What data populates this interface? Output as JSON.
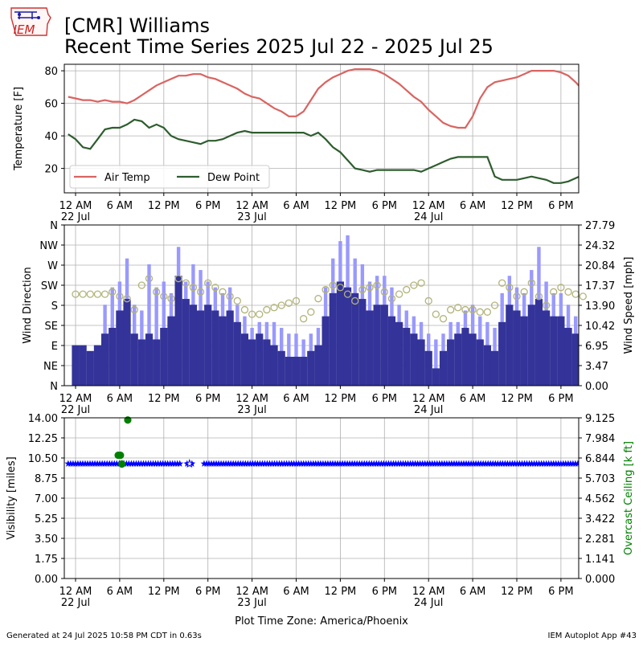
{
  "logo_text": "IEM",
  "title_line1": "[CMR] Williams",
  "title_line2": "Recent Time Series 2025 Jul 22 - 2025 Jul 25",
  "x_tick_labels": [
    "12 AM",
    "6 AM",
    "12 PM",
    "6 PM",
    "12 AM",
    "6 AM",
    "12 PM",
    "6 PM",
    "12 AM",
    "6 AM",
    "12 PM",
    "6 PM"
  ],
  "x_date_labels": [
    "22 Jul",
    "23 Jul",
    "24 Jul"
  ],
  "x_label": "Plot Time Zone: America/Phoenix",
  "footer_left": "Generated at 24 Jul 2025 10:58 PM CDT in 0.63s",
  "footer_right": "IEM Autoplot App #43",
  "colors": {
    "air_temp": "#d96461",
    "dew_point": "#2e5d2e",
    "wind_speed_dark": "#333399",
    "wind_gust_light": "#9999ff",
    "wind_dir": "#b3b37a",
    "visibility": "#0000ff",
    "ceiling": "#008000",
    "grid": "#b0b0b0"
  },
  "chart_data": [
    {
      "type": "line",
      "ylabel": "Temperature [F]",
      "ylim": [
        5,
        84
      ],
      "y_ticks": [
        "20",
        "40",
        "60",
        "80"
      ],
      "grid": true,
      "legend": "lower-left",
      "x_hours_from": "2025-07-22 00:00",
      "series": [
        {
          "name": "Air Temp",
          "points": [
            [
              -1,
              64
            ],
            [
              0,
              63
            ],
            [
              1,
              62
            ],
            [
              2,
              62
            ],
            [
              3,
              61
            ],
            [
              4,
              62
            ],
            [
              5,
              61
            ],
            [
              6,
              61
            ],
            [
              7,
              60
            ],
            [
              8,
              62
            ],
            [
              9,
              65
            ],
            [
              10,
              68
            ],
            [
              11,
              71
            ],
            [
              12,
              73
            ],
            [
              13,
              75
            ],
            [
              14,
              77
            ],
            [
              15,
              77
            ],
            [
              16,
              78
            ],
            [
              17,
              78
            ],
            [
              18,
              76
            ],
            [
              19,
              75
            ],
            [
              20,
              73
            ],
            [
              21,
              71
            ],
            [
              22,
              69
            ],
            [
              23,
              66
            ],
            [
              24,
              64
            ],
            [
              25,
              63
            ],
            [
              26,
              60
            ],
            [
              27,
              57
            ],
            [
              28,
              55
            ],
            [
              29,
              52
            ],
            [
              30,
              52
            ],
            [
              31,
              55
            ],
            [
              32,
              62
            ],
            [
              33,
              69
            ],
            [
              34,
              73
            ],
            [
              35,
              76
            ],
            [
              36,
              78
            ],
            [
              37,
              80
            ],
            [
              38,
              81
            ],
            [
              39,
              81
            ],
            [
              40,
              81
            ],
            [
              41,
              80
            ],
            [
              42,
              78
            ],
            [
              43,
              75
            ],
            [
              44,
              72
            ],
            [
              45,
              68
            ],
            [
              46,
              64
            ],
            [
              47,
              61
            ],
            [
              48,
              56
            ],
            [
              49,
              52
            ],
            [
              50,
              48
            ],
            [
              51,
              46
            ],
            [
              52,
              45
            ],
            [
              53,
              45
            ],
            [
              54,
              52
            ],
            [
              55,
              63
            ],
            [
              56,
              70
            ],
            [
              57,
              73
            ],
            [
              58,
              74
            ],
            [
              59,
              75
            ],
            [
              60,
              76
            ],
            [
              61,
              78
            ],
            [
              62,
              80
            ],
            [
              63,
              80
            ],
            [
              64,
              80
            ],
            [
              65,
              80
            ],
            [
              66,
              79
            ],
            [
              67,
              77
            ],
            [
              68,
              73
            ],
            [
              69,
              68
            ],
            [
              70,
              68
            ]
          ]
        },
        {
          "name": "Dew Point",
          "points": [
            [
              -1,
              41
            ],
            [
              0,
              38
            ],
            [
              1,
              33
            ],
            [
              2,
              32
            ],
            [
              3,
              38
            ],
            [
              4,
              44
            ],
            [
              5,
              45
            ],
            [
              6,
              45
            ],
            [
              7,
              47
            ],
            [
              8,
              50
            ],
            [
              9,
              49
            ],
            [
              10,
              45
            ],
            [
              11,
              47
            ],
            [
              12,
              45
            ],
            [
              13,
              40
            ],
            [
              14,
              38
            ],
            [
              15,
              37
            ],
            [
              16,
              36
            ],
            [
              17,
              35
            ],
            [
              18,
              37
            ],
            [
              19,
              37
            ],
            [
              20,
              38
            ],
            [
              21,
              40
            ],
            [
              22,
              42
            ],
            [
              23,
              43
            ],
            [
              24,
              42
            ],
            [
              25,
              42
            ],
            [
              26,
              42
            ],
            [
              27,
              42
            ],
            [
              28,
              42
            ],
            [
              29,
              42
            ],
            [
              30,
              42
            ],
            [
              31,
              42
            ],
            [
              32,
              40
            ],
            [
              33,
              42
            ],
            [
              34,
              38
            ],
            [
              35,
              33
            ],
            [
              36,
              30
            ],
            [
              37,
              25
            ],
            [
              38,
              20
            ],
            [
              39,
              19
            ],
            [
              40,
              18
            ],
            [
              41,
              19
            ],
            [
              42,
              19
            ],
            [
              43,
              19
            ],
            [
              44,
              19
            ],
            [
              45,
              19
            ],
            [
              46,
              19
            ],
            [
              47,
              18
            ],
            [
              48,
              20
            ],
            [
              49,
              22
            ],
            [
              50,
              24
            ],
            [
              51,
              26
            ],
            [
              52,
              27
            ],
            [
              53,
              27
            ],
            [
              54,
              27
            ],
            [
              55,
              27
            ],
            [
              56,
              27
            ],
            [
              57,
              15
            ],
            [
              58,
              13
            ],
            [
              59,
              13
            ],
            [
              60,
              13
            ],
            [
              61,
              14
            ],
            [
              62,
              15
            ],
            [
              63,
              14
            ],
            [
              64,
              13
            ],
            [
              65,
              11
            ],
            [
              66,
              11
            ],
            [
              67,
              12
            ],
            [
              68,
              14
            ],
            [
              69,
              16
            ],
            [
              70,
              18
            ]
          ]
        }
      ]
    },
    {
      "type": "bar",
      "ylabel": "Wind Direction",
      "ylabel_right": "Wind Speed [mph]",
      "y_ticks_left": [
        "N",
        "NE",
        "E",
        "SE",
        "S",
        "SW",
        "W",
        "NW",
        "N"
      ],
      "y_ticks_right": [
        "0.00",
        "3.47",
        "6.95",
        "10.42",
        "13.90",
        "17.37",
        "20.84",
        "24.32",
        "27.79"
      ],
      "ylim_right": [
        0,
        27.79
      ],
      "grid": true,
      "x_hours_from": "2025-07-22 00:00",
      "series": [
        {
          "name": "Wind Speed",
          "hourly_values": [
            7,
            7,
            6,
            7,
            9,
            10,
            13,
            15,
            9,
            8,
            9,
            8,
            10,
            12,
            19,
            15,
            14,
            13,
            14,
            13,
            12,
            13,
            11,
            9,
            8,
            9,
            8,
            7,
            6,
            5,
            5,
            5,
            6,
            7,
            12,
            16,
            18,
            17,
            16,
            15,
            13,
            14,
            14,
            12,
            11,
            10,
            9,
            8,
            6,
            3,
            6,
            8,
            9,
            10,
            9,
            8,
            7,
            6,
            11,
            14,
            13,
            12,
            14,
            15,
            13,
            12,
            12,
            10,
            9,
            8
          ],
          "gust_values": [
            0,
            0,
            0,
            0,
            14,
            17,
            18,
            22,
            14,
            13,
            21,
            17,
            18,
            16,
            24,
            18,
            21,
            20,
            18,
            17,
            16,
            17,
            14,
            12,
            10,
            11,
            11,
            11,
            10,
            9,
            9,
            8,
            9,
            10,
            17,
            22,
            25,
            26,
            22,
            21,
            18,
            19,
            19,
            17,
            14,
            13,
            12,
            11,
            9,
            8,
            9,
            11,
            11,
            13,
            14,
            12,
            11,
            10,
            16,
            19,
            17,
            16,
            20,
            24,
            18,
            16,
            16,
            14,
            12,
            11
          ]
        },
        {
          "name": "Wind Direction",
          "hourly_degrees": [
            205,
            205,
            205,
            205,
            205,
            210,
            200,
            195,
            170,
            225,
            240,
            210,
            200,
            195,
            240,
            230,
            220,
            210,
            230,
            220,
            210,
            200,
            190,
            170,
            160,
            160,
            170,
            175,
            180,
            185,
            190,
            150,
            165,
            195,
            215,
            225,
            220,
            205,
            190,
            215,
            220,
            225,
            210,
            195,
            205,
            215,
            225,
            230,
            190,
            160,
            150,
            170,
            175,
            170,
            170,
            165,
            165,
            180,
            230,
            220,
            200,
            210,
            230,
            200,
            180,
            210,
            220,
            210,
            205,
            200
          ]
        }
      ]
    },
    {
      "type": "scatter",
      "ylabel": "Visibility [miles]",
      "ylabel_right": "Overcast Ceiling [k ft]",
      "y_ticks_left": [
        "0.00",
        "1.75",
        "3.50",
        "5.25",
        "7.00",
        "8.75",
        "10.50",
        "12.25",
        "14.00"
      ],
      "y_ticks_right": [
        "0.000",
        "1.141",
        "2.281",
        "3.422",
        "4.562",
        "5.703",
        "6.844",
        "7.984",
        "9.125"
      ],
      "ylim": [
        0,
        14
      ],
      "grid": true,
      "x_hours_from": "2025-07-22 00:00",
      "series": [
        {
          "name": "Visibility",
          "value": 10,
          "hour_range": [
            -1,
            71
          ],
          "gaps": [
            [
              14.2,
              14.9
            ],
            [
              16.0,
              17.4
            ]
          ]
        },
        {
          "name": "Overcast Ceiling",
          "points": [
            [
              5.8,
              7.0
            ],
            [
              6.1,
              7.0
            ],
            [
              6.3,
              6.5
            ],
            [
              7.1,
              9.0
            ]
          ]
        }
      ]
    }
  ]
}
